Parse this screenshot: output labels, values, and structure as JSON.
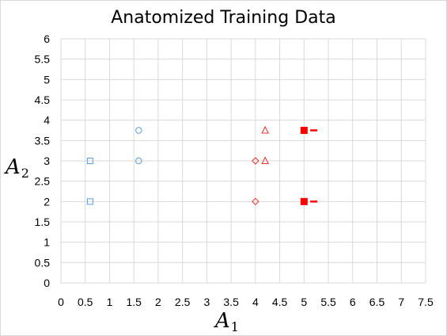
{
  "chart_data": {
    "type": "scatter",
    "title": "Anatomized Training Data",
    "xlabel": "A",
    "xlabel_sub": "1",
    "ylabel": "A",
    "ylabel_sub": "2",
    "xlim": [
      0,
      7.5
    ],
    "ylim": [
      0,
      6
    ],
    "x_ticks": [
      "0",
      "0.5",
      "1",
      "1.5",
      "2",
      "2.5",
      "3",
      "3.5",
      "4",
      "4.5",
      "5",
      "5.5",
      "6",
      "6.5",
      "7",
      "7.5"
    ],
    "y_ticks": [
      "0",
      "0.5",
      "1",
      "1.5",
      "2",
      "2.5",
      "3",
      "3.5",
      "4",
      "4.5",
      "5",
      "5.5",
      "6"
    ],
    "grid": true,
    "legend": "none",
    "series": [
      {
        "marker": "square-open",
        "color": "#5b9bd5",
        "points": [
          {
            "x": 0.6,
            "y": 3
          },
          {
            "x": 0.6,
            "y": 2
          }
        ]
      },
      {
        "marker": "circle-open",
        "color": "#5b9bd5",
        "points": [
          {
            "x": 1.6,
            "y": 3.75
          },
          {
            "x": 1.6,
            "y": 3
          }
        ]
      },
      {
        "marker": "diamond-open",
        "color": "#e8302a",
        "points": [
          {
            "x": 4,
            "y": 3
          },
          {
            "x": 4,
            "y": 2
          }
        ]
      },
      {
        "marker": "triangle-open",
        "color": "#e8302a",
        "points": [
          {
            "x": 4.2,
            "y": 3.75
          },
          {
            "x": 4.2,
            "y": 3
          }
        ]
      },
      {
        "marker": "square-filled",
        "color": "#ff0000",
        "points": [
          {
            "x": 5,
            "y": 3.75
          },
          {
            "x": 5,
            "y": 2
          }
        ]
      },
      {
        "marker": "dash",
        "color": "#ff0000",
        "points": [
          {
            "x": 5.2,
            "y": 3.75
          },
          {
            "x": 5.2,
            "y": 2
          }
        ]
      }
    ]
  }
}
